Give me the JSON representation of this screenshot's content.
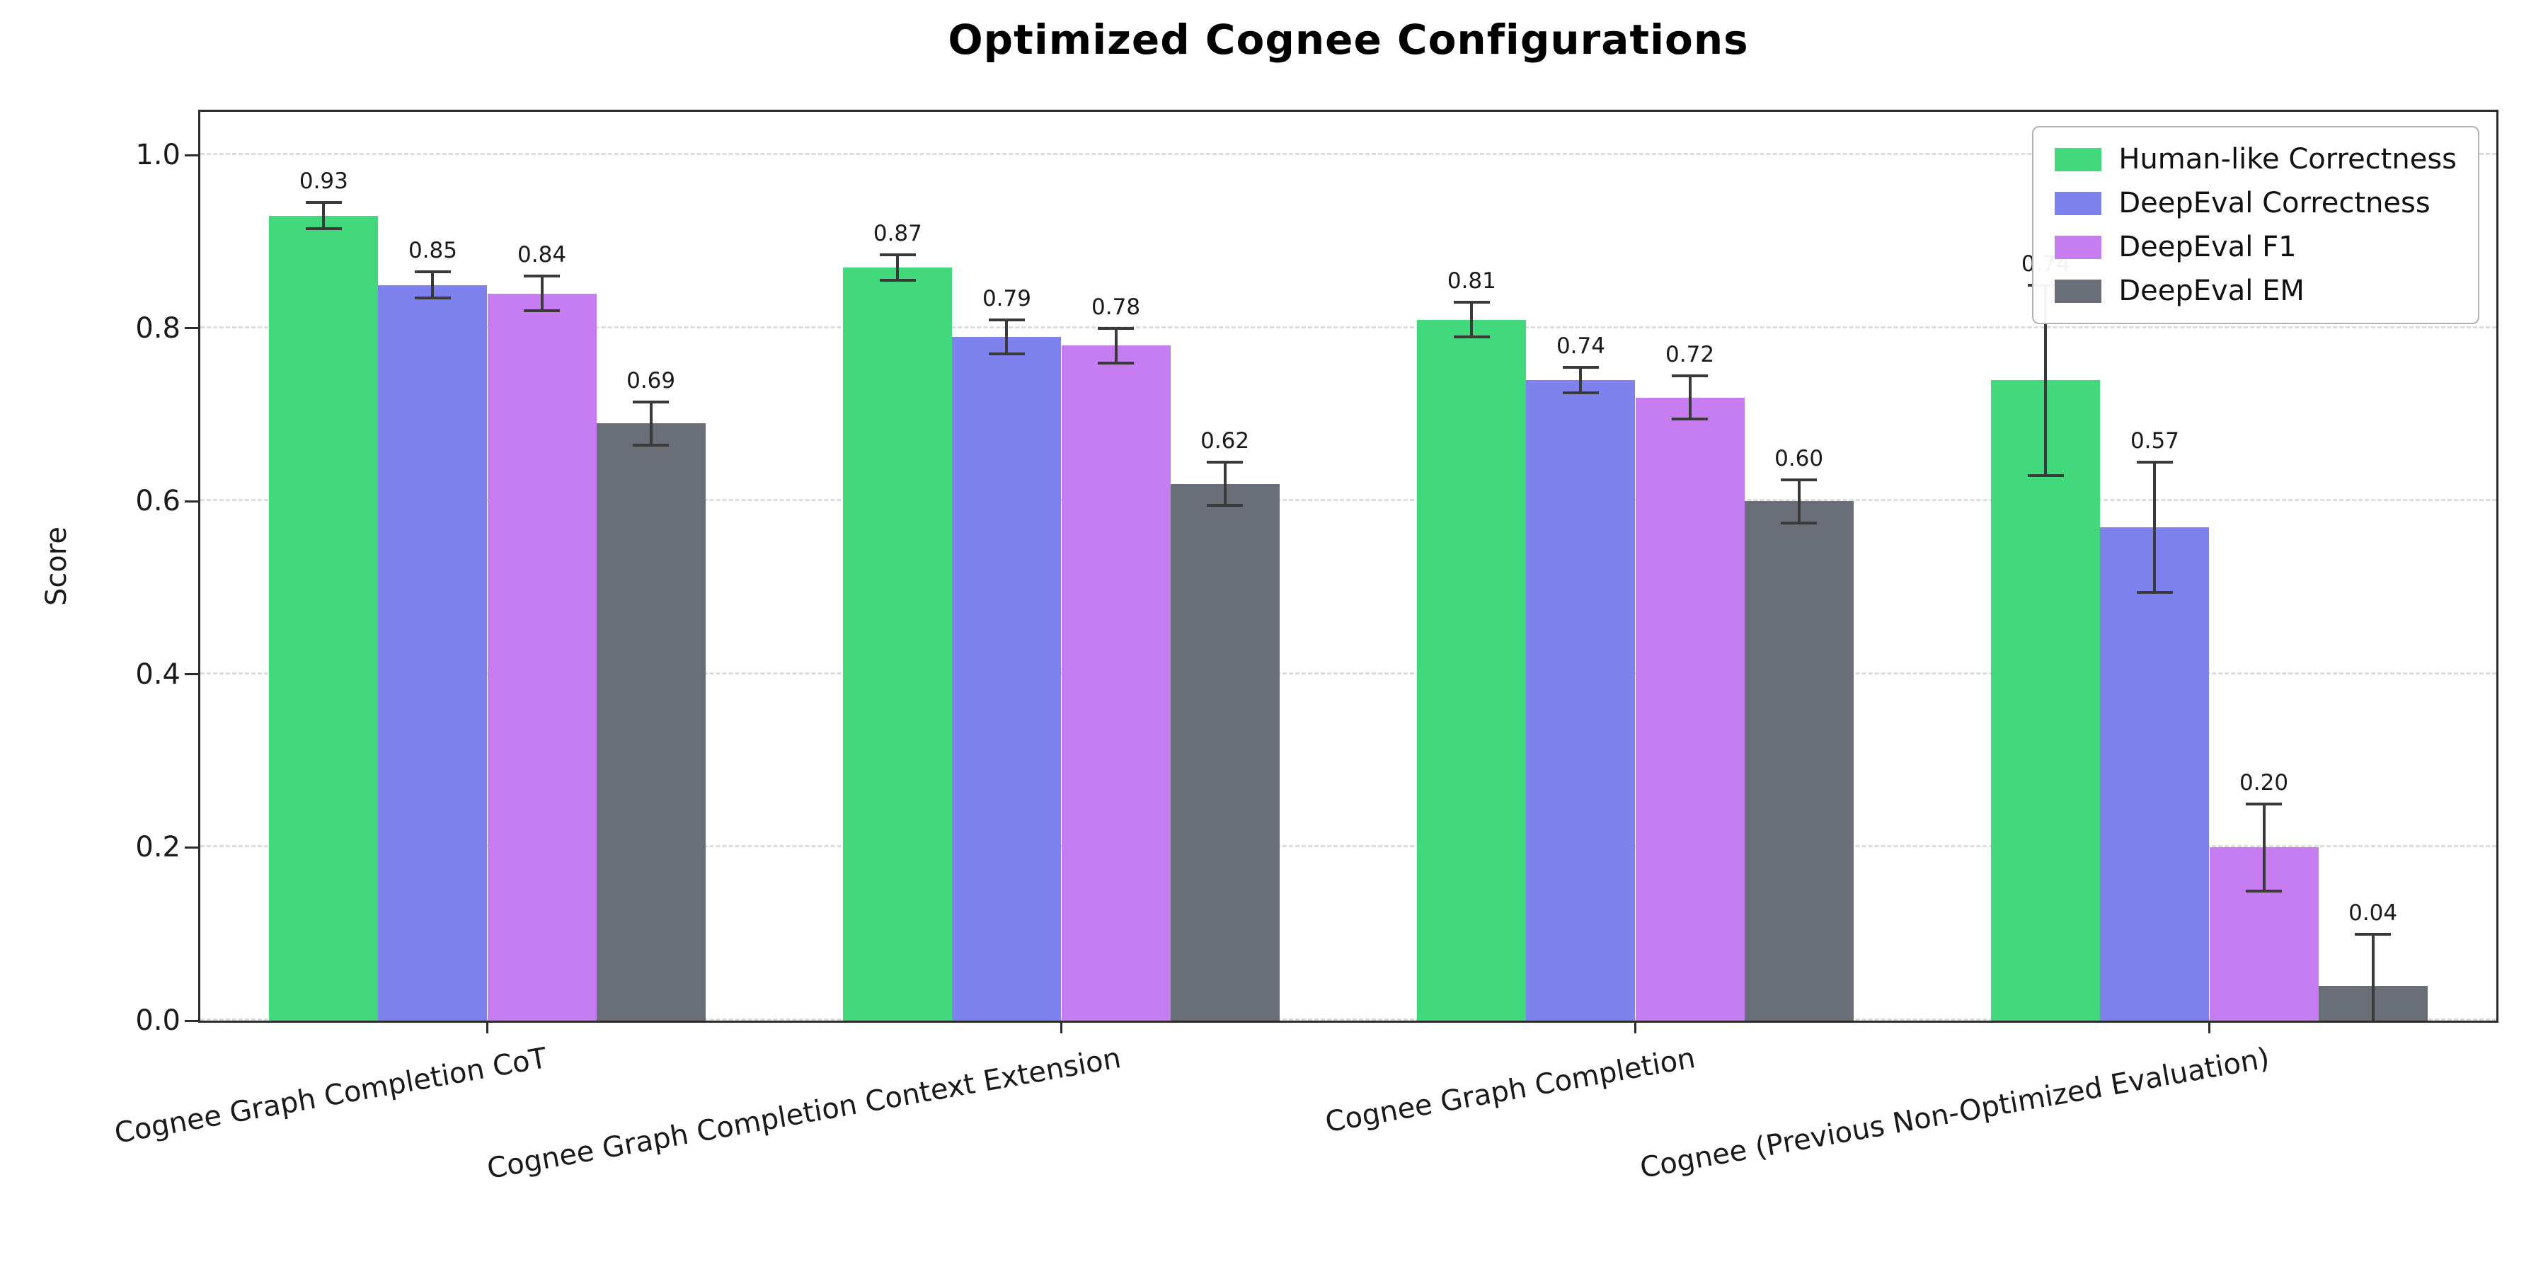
{
  "figure": {
    "background": "#ffffff",
    "text_color": "#111111",
    "grid_color": "#dcdcdc",
    "spine_color": "#2b2b2b",
    "error_bar_color": "#3a3a3a"
  },
  "chart_data": {
    "type": "bar",
    "title": "Optimized Cognee Configurations",
    "ylabel": "Score",
    "xlabel": "",
    "ylim": [
      0,
      1.05
    ],
    "yticks": [
      0,
      0.2,
      0.4,
      0.6,
      0.8,
      1.0
    ],
    "ytick_labels": [
      "0.0",
      "0.2",
      "0.4",
      "0.6",
      "0.8",
      "1.0"
    ],
    "grid": "horizontal-dashed",
    "legend_position": "upper-right",
    "error_bars": true,
    "categories": [
      "Cognee Graph Completion CoT",
      "Cognee Graph Completion Context Extension",
      "Cognee Graph Completion",
      "Cognee (Previous Non-Optimized Evaluation)"
    ],
    "series": [
      {
        "name": "Human-like Correctness",
        "color": "#41d97c",
        "values": [
          0.93,
          0.87,
          0.81,
          0.74
        ],
        "errors": [
          0.015,
          0.015,
          0.02,
          0.11
        ],
        "value_labels": [
          "0.93",
          "0.87",
          "0.81",
          "0.74"
        ]
      },
      {
        "name": "DeepEval Correctness",
        "color": "#7d82ef",
        "values": [
          0.85,
          0.79,
          0.74,
          0.57
        ],
        "errors": [
          0.015,
          0.02,
          0.015,
          0.075
        ],
        "value_labels": [
          "0.85",
          "0.79",
          "0.74",
          "0.57"
        ]
      },
      {
        "name": "DeepEval F1",
        "color": "#c67df2",
        "values": [
          0.84,
          0.78,
          0.72,
          0.2
        ],
        "errors": [
          0.02,
          0.02,
          0.025,
          0.05
        ],
        "value_labels": [
          "0.84",
          "0.78",
          "0.72",
          "0.20"
        ]
      },
      {
        "name": "DeepEval EM",
        "color": "#6a6e79",
        "values": [
          0.69,
          0.62,
          0.6,
          0.04
        ],
        "errors": [
          0.025,
          0.025,
          0.025,
          0.06
        ],
        "value_labels": [
          "0.69",
          "0.62",
          "0.60",
          "0.04"
        ]
      }
    ]
  }
}
